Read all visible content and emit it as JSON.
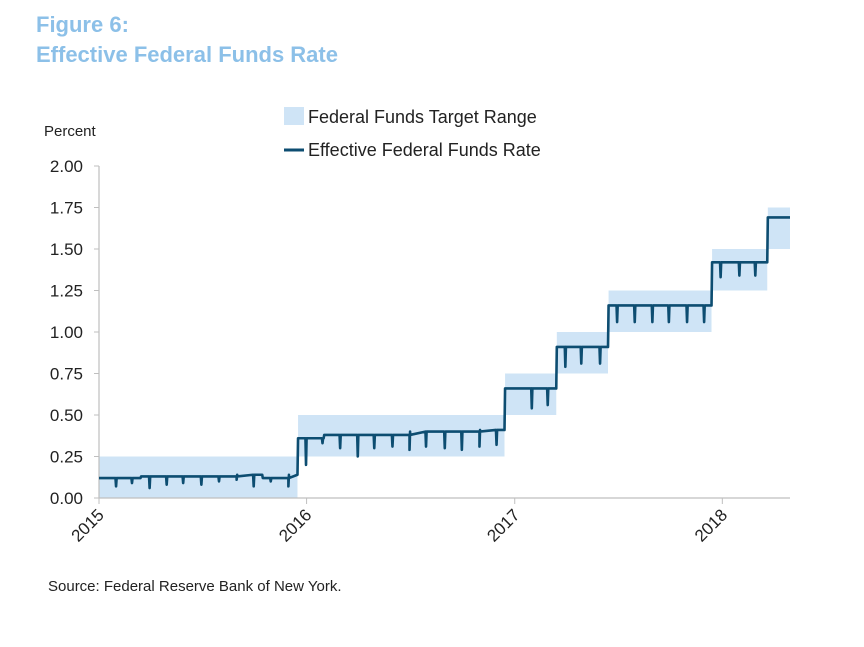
{
  "figure": {
    "label": "Figure 6:",
    "title": "Effective Federal Funds Rate"
  },
  "source": "Source:  Federal Reserve Bank of New York.",
  "colors": {
    "title": "#8cc0e8",
    "band": "#cfe4f6",
    "line": "#0d4d71",
    "axis": "#bfbfbf"
  },
  "chart_data": {
    "type": "line",
    "title": "",
    "ylabel": "Percent",
    "ylim": [
      0,
      2.0
    ],
    "yticks": [
      "0.00",
      "0.25",
      "0.50",
      "0.75",
      "1.00",
      "1.25",
      "1.50",
      "1.75",
      "2.00"
    ],
    "xlim": [
      "2015-01-01",
      "2018-04-30"
    ],
    "xticks": [
      "2015",
      "2016",
      "2017",
      "2018"
    ],
    "grid": false,
    "legend_position": "top",
    "series": [
      {
        "name": "Federal Funds Target Range",
        "kind": "band",
        "ranges": [
          {
            "start": "2015-01-01",
            "end": "2015-12-16",
            "low": 0.0,
            "high": 0.25
          },
          {
            "start": "2015-12-17",
            "end": "2016-12-14",
            "low": 0.25,
            "high": 0.5
          },
          {
            "start": "2016-12-15",
            "end": "2017-03-15",
            "low": 0.5,
            "high": 0.75
          },
          {
            "start": "2017-03-16",
            "end": "2017-06-14",
            "low": 0.75,
            "high": 1.0
          },
          {
            "start": "2017-06-15",
            "end": "2017-12-13",
            "low": 1.0,
            "high": 1.25
          },
          {
            "start": "2017-12-14",
            "end": "2018-03-21",
            "low": 1.25,
            "high": 1.5
          },
          {
            "start": "2018-03-22",
            "end": "2018-04-30",
            "low": 1.5,
            "high": 1.75
          }
        ]
      },
      {
        "name": "Effective Federal Funds Rate",
        "kind": "line",
        "levels": [
          {
            "start": "2015-01-01",
            "end": "2015-03-15",
            "value": 0.12
          },
          {
            "start": "2015-03-16",
            "end": "2015-08-31",
            "value": 0.13
          },
          {
            "start": "2015-09-01",
            "end": "2015-10-15",
            "value": 0.14
          },
          {
            "start": "2015-10-16",
            "end": "2015-11-30",
            "value": 0.12
          },
          {
            "start": "2015-12-01",
            "end": "2015-12-16",
            "value": 0.14
          },
          {
            "start": "2015-12-17",
            "end": "2016-01-31",
            "value": 0.36
          },
          {
            "start": "2016-02-01",
            "end": "2016-06-30",
            "value": 0.38
          },
          {
            "start": "2016-07-01",
            "end": "2016-10-31",
            "value": 0.4
          },
          {
            "start": "2016-11-01",
            "end": "2016-12-14",
            "value": 0.41
          },
          {
            "start": "2016-12-15",
            "end": "2017-03-15",
            "value": 0.66
          },
          {
            "start": "2017-03-16",
            "end": "2017-06-14",
            "value": 0.91
          },
          {
            "start": "2017-06-15",
            "end": "2017-12-13",
            "value": 1.16
          },
          {
            "start": "2017-12-14",
            "end": "2018-03-21",
            "value": 1.42
          },
          {
            "start": "2018-03-22",
            "end": "2018-04-30",
            "value": 1.69
          }
        ],
        "dips": [
          {
            "date": "2015-01-31",
            "value": 0.07
          },
          {
            "date": "2015-02-28",
            "value": 0.09
          },
          {
            "date": "2015-03-31",
            "value": 0.06
          },
          {
            "date": "2015-04-30",
            "value": 0.08
          },
          {
            "date": "2015-05-29",
            "value": 0.09
          },
          {
            "date": "2015-06-30",
            "value": 0.08
          },
          {
            "date": "2015-07-31",
            "value": 0.1
          },
          {
            "date": "2015-08-31",
            "value": 0.11
          },
          {
            "date": "2015-09-30",
            "value": 0.07
          },
          {
            "date": "2015-10-30",
            "value": 0.1
          },
          {
            "date": "2015-11-30",
            "value": 0.07
          },
          {
            "date": "2015-12-31",
            "value": 0.2
          },
          {
            "date": "2016-01-29",
            "value": 0.33
          },
          {
            "date": "2016-02-29",
            "value": 0.3
          },
          {
            "date": "2016-03-31",
            "value": 0.25
          },
          {
            "date": "2016-04-29",
            "value": 0.3
          },
          {
            "date": "2016-05-31",
            "value": 0.31
          },
          {
            "date": "2016-06-30",
            "value": 0.29
          },
          {
            "date": "2016-07-29",
            "value": 0.31
          },
          {
            "date": "2016-08-31",
            "value": 0.3
          },
          {
            "date": "2016-09-30",
            "value": 0.29
          },
          {
            "date": "2016-10-31",
            "value": 0.31
          },
          {
            "date": "2016-11-30",
            "value": 0.32
          },
          {
            "date": "2017-01-31",
            "value": 0.54
          },
          {
            "date": "2017-02-28",
            "value": 0.56
          },
          {
            "date": "2017-03-31",
            "value": 0.79
          },
          {
            "date": "2017-04-28",
            "value": 0.81
          },
          {
            "date": "2017-05-31",
            "value": 0.81
          },
          {
            "date": "2017-06-30",
            "value": 1.06
          },
          {
            "date": "2017-07-31",
            "value": 1.06
          },
          {
            "date": "2017-08-31",
            "value": 1.06
          },
          {
            "date": "2017-09-29",
            "value": 1.06
          },
          {
            "date": "2017-10-31",
            "value": 1.06
          },
          {
            "date": "2017-11-30",
            "value": 1.06
          },
          {
            "date": "2017-12-29",
            "value": 1.33
          },
          {
            "date": "2018-01-31",
            "value": 1.34
          },
          {
            "date": "2018-02-28",
            "value": 1.34
          }
        ]
      }
    ]
  }
}
